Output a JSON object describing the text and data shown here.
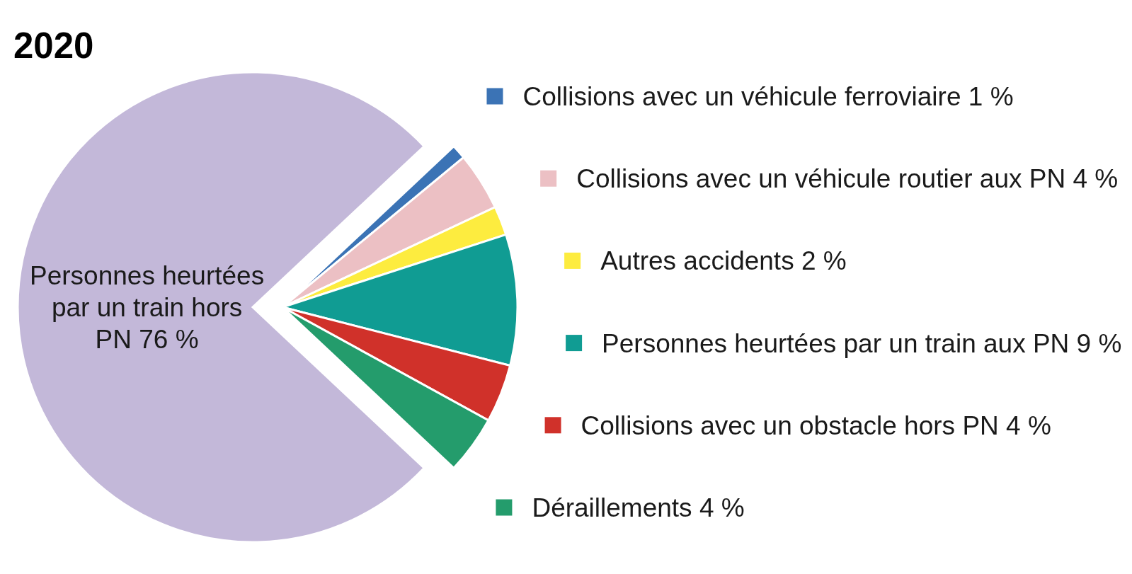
{
  "chart_data": {
    "type": "pie",
    "title": "2020",
    "categories": [
      "Collisions avec un véhicule ferroviaire",
      "Collisions avec un véhicule routier aux PN",
      "Autres accidents",
      "Personnes heurtées par un train aux PN",
      "Collisions avec un obstacle hors PN",
      "Déraillements",
      "Personnes heurtées par un train hors PN"
    ],
    "values": [
      1,
      4,
      2,
      9,
      4,
      4,
      76
    ],
    "colors": [
      "#3b73b5",
      "#ecc0c4",
      "#fdec3f",
      "#109c93",
      "#d0312a",
      "#249c6c",
      "#c3b8d9"
    ],
    "value_labels": [
      "1 %",
      "4 %",
      "2 %",
      "9 %",
      "4 %",
      "4 %",
      "76 %"
    ],
    "legend": "right"
  }
}
